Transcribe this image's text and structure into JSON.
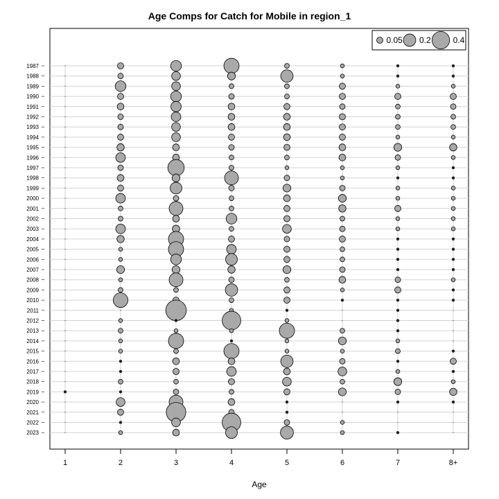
{
  "chart_data": {
    "type": "scatter",
    "title": "Age Comps for Catch for Mobile in region_1",
    "xlabel": "Age",
    "ylabel": "",
    "ages": [
      "1",
      "2",
      "3",
      "4",
      "5",
      "6",
      "7",
      "8+"
    ],
    "years": [
      "1987",
      "1988",
      "1989",
      "1990",
      "1991",
      "1992",
      "1993",
      "1994",
      "1995",
      "1996",
      "1997",
      "1998",
      "1999",
      "2000",
      "2001",
      "2002",
      "2003",
      "2004",
      "2005",
      "2006",
      "2007",
      "2008",
      "2009",
      "2010",
      "2011",
      "2012",
      "2013",
      "2014",
      "2015",
      "2016",
      "2017",
      "2018",
      "2019",
      "2020",
      "2021",
      "2022",
      "2023"
    ],
    "legend": {
      "position": "top-right",
      "entries": [
        {
          "label": "0.05",
          "value": 0.05
        },
        {
          "label": "0.2",
          "value": 0.2
        },
        {
          "label": "0.4",
          "value": 0.4
        }
      ]
    },
    "grid": true,
    "proportions": [
      [
        0.0,
        0.05,
        0.15,
        0.3,
        0.03,
        0.02,
        0.01,
        0.01
      ],
      [
        0.0,
        0.04,
        0.1,
        0.08,
        0.2,
        0.02,
        0.01,
        0.01
      ],
      [
        0.0,
        0.15,
        0.1,
        0.03,
        0.03,
        0.05,
        0.02,
        0.02
      ],
      [
        0.0,
        0.05,
        0.15,
        0.04,
        0.03,
        0.05,
        0.05,
        0.05
      ],
      [
        0.0,
        0.06,
        0.14,
        0.06,
        0.05,
        0.04,
        0.03,
        0.04
      ],
      [
        0.0,
        0.04,
        0.12,
        0.06,
        0.06,
        0.05,
        0.03,
        0.03
      ],
      [
        0.0,
        0.04,
        0.1,
        0.06,
        0.06,
        0.05,
        0.03,
        0.03
      ],
      [
        0.0,
        0.05,
        0.1,
        0.05,
        0.06,
        0.05,
        0.02,
        0.02
      ],
      [
        0.0,
        0.07,
        0.06,
        0.04,
        0.05,
        0.06,
        0.08,
        0.07
      ],
      [
        0.0,
        0.12,
        0.06,
        0.03,
        0.03,
        0.06,
        0.04,
        0.02
      ],
      [
        0.0,
        0.04,
        0.35,
        0.03,
        0.02,
        0.02,
        0.02,
        0.01
      ],
      [
        0.0,
        0.06,
        0.08,
        0.25,
        0.04,
        0.02,
        0.01,
        0.01
      ],
      [
        0.0,
        0.05,
        0.18,
        0.04,
        0.08,
        0.04,
        0.02,
        0.02
      ],
      [
        0.0,
        0.12,
        0.04,
        0.03,
        0.06,
        0.08,
        0.02,
        0.02
      ],
      [
        0.0,
        0.03,
        0.25,
        0.03,
        0.05,
        0.07,
        0.05,
        0.02
      ],
      [
        0.0,
        0.03,
        0.06,
        0.15,
        0.05,
        0.03,
        0.02,
        0.02
      ],
      [
        0.0,
        0.12,
        0.07,
        0.03,
        0.1,
        0.04,
        0.02,
        0.02
      ],
      [
        0.0,
        0.07,
        0.3,
        0.05,
        0.04,
        0.05,
        0.01,
        0.01
      ],
      [
        0.0,
        0.02,
        0.3,
        0.12,
        0.05,
        0.03,
        0.01,
        0.01
      ],
      [
        0.0,
        0.02,
        0.15,
        0.18,
        0.05,
        0.03,
        0.01,
        0.01
      ],
      [
        0.0,
        0.08,
        0.08,
        0.07,
        0.08,
        0.04,
        0.01,
        0.01
      ],
      [
        0.0,
        0.02,
        0.25,
        0.04,
        0.03,
        0.06,
        0.04,
        0.02
      ],
      [
        0.0,
        0.03,
        0.03,
        0.2,
        0.05,
        0.02,
        0.05,
        0.01
      ],
      [
        0.0,
        0.28,
        0.05,
        0.03,
        0.05,
        0.01,
        0.01,
        0.01
      ],
      [
        0.0,
        0.0,
        0.55,
        0.02,
        0.01,
        0.0,
        0.01,
        0.0
      ],
      [
        0.0,
        0.02,
        0.01,
        0.45,
        0.02,
        0.0,
        0.01,
        0.0
      ],
      [
        0.0,
        0.03,
        0.02,
        0.02,
        0.3,
        0.03,
        0.01,
        0.0
      ],
      [
        0.0,
        0.02,
        0.3,
        0.01,
        0.02,
        0.08,
        0.02,
        0.0
      ],
      [
        0.0,
        0.02,
        0.03,
        0.3,
        0.02,
        0.02,
        0.03,
        0.01
      ],
      [
        0.0,
        0.01,
        0.06,
        0.06,
        0.2,
        0.04,
        0.01,
        0.05
      ],
      [
        0.0,
        0.01,
        0.05,
        0.12,
        0.06,
        0.1,
        0.02,
        0.01
      ],
      [
        0.0,
        0.03,
        0.03,
        0.05,
        0.1,
        0.03,
        0.08,
        0.02
      ],
      [
        0.01,
        0.01,
        0.04,
        0.03,
        0.05,
        0.08,
        0.04,
        0.07
      ],
      [
        0.0,
        0.1,
        0.25,
        0.06,
        0.01,
        0.0,
        0.01,
        0.01
      ],
      [
        0.0,
        0.05,
        0.5,
        0.04,
        0.01,
        0.0,
        0.0,
        0.0
      ],
      [
        0.0,
        0.01,
        0.1,
        0.45,
        0.04,
        0.02,
        0.0,
        0.0
      ],
      [
        0.0,
        0.02,
        0.06,
        0.18,
        0.22,
        0.02,
        0.01,
        0.0
      ]
    ]
  }
}
